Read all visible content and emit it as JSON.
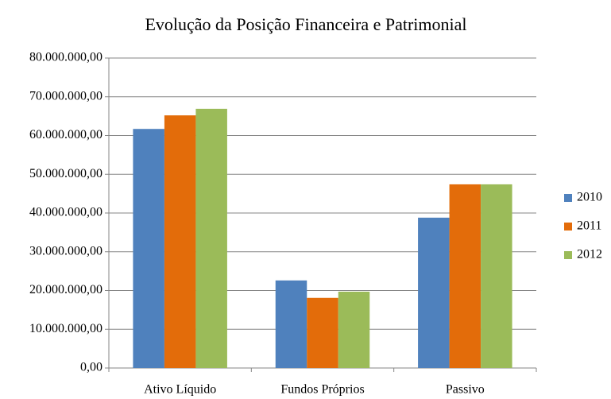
{
  "chart_data": {
    "type": "bar",
    "title": "Evolução da Posição Financeira e Patrimonial",
    "categories": [
      "Ativo Líquido",
      "Fundos Próprios",
      "Passivo"
    ],
    "series": [
      {
        "name": "2010",
        "color": "#4f81bd",
        "values": [
          61700000,
          22600000,
          38800000
        ]
      },
      {
        "name": "2011",
        "color": "#e36c0a",
        "values": [
          65200000,
          18100000,
          47400000
        ]
      },
      {
        "name": "2012",
        "color": "#9bbb59",
        "values": [
          66900000,
          19700000,
          47400000
        ]
      }
    ],
    "ylim": [
      0,
      80000000
    ],
    "yticks": [
      {
        "value": 0,
        "label": "0,00"
      },
      {
        "value": 10000000,
        "label": "10.000.000,00"
      },
      {
        "value": 20000000,
        "label": "20.000.000,00"
      },
      {
        "value": 30000000,
        "label": "30.000.000,00"
      },
      {
        "value": 40000000,
        "label": "40.000.000,00"
      },
      {
        "value": 50000000,
        "label": "50.000.000,00"
      },
      {
        "value": 60000000,
        "label": "60.000.000,00"
      },
      {
        "value": 70000000,
        "label": "70.000.000,00"
      },
      {
        "value": 80000000,
        "label": "80.000.000,00"
      }
    ],
    "grid": true,
    "legend": "right"
  }
}
